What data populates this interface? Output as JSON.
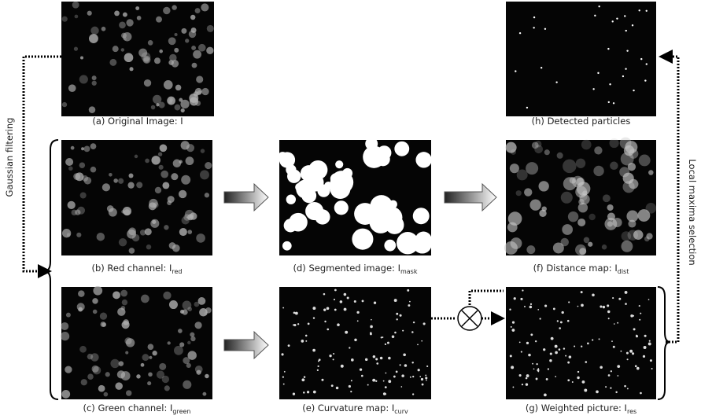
{
  "captions": [
    {
      "text": "(a) Original Image: I"
    },
    {
      "text": "(h) Detected particles"
    },
    {
      "text": "(b) Red channel: I",
      "sub": "red"
    },
    {
      "text": "(d) Segmented image: I",
      "sub": "mask"
    },
    {
      "text": "(f) Distance map: I",
      "sub": "dist"
    },
    {
      "text": "(c) Green channel: I",
      "sub": "green"
    },
    {
      "text": "(e) Curvature map: I",
      "sub": "curv"
    },
    {
      "text": "(g) Weighted picture: I",
      "sub": "res"
    }
  ],
  "side_labels": {
    "left": "Gaussian filtering",
    "right": "Local maxima selection"
  }
}
